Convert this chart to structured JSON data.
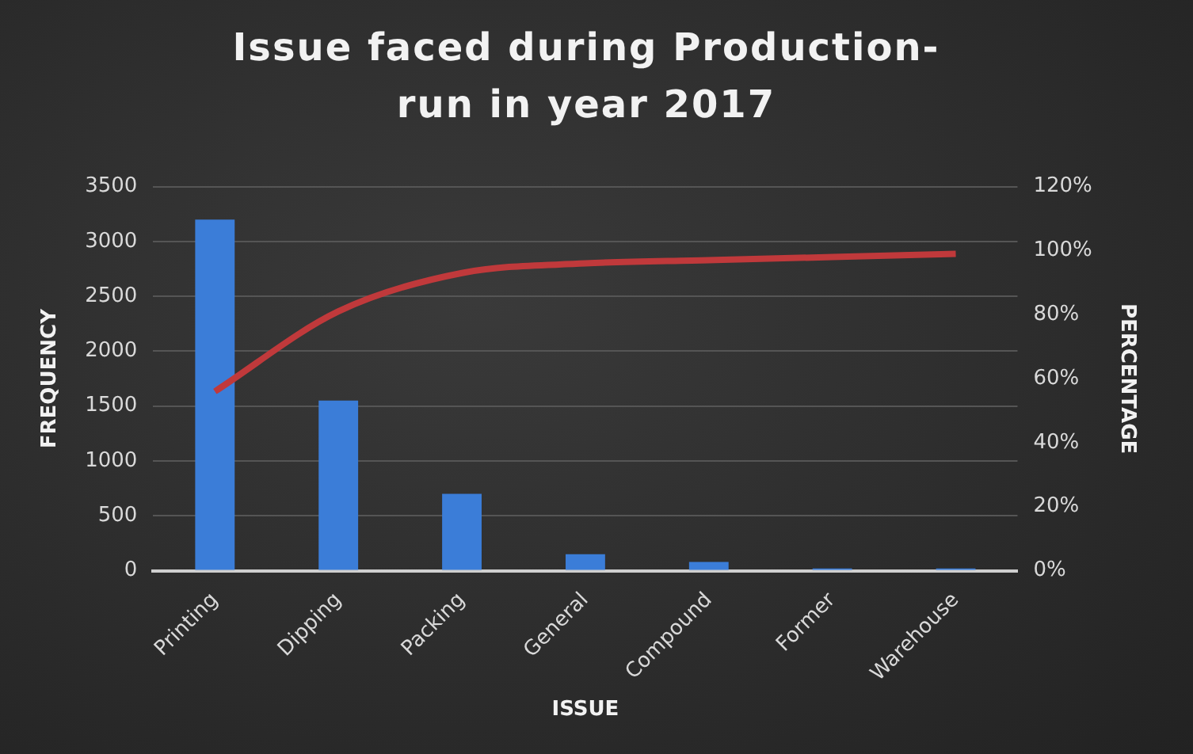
{
  "chart_data": {
    "type": "bar",
    "title": "Issue faced during Production-run in year 2017",
    "xlabel": "ISSUE",
    "ylabel": "FREQUENCY",
    "y2label": "PERCENTAGE",
    "categories": [
      "Printing",
      "Dipping",
      "Packing",
      "General",
      "Compound",
      "Former",
      "Warehouse"
    ],
    "series": [
      {
        "color": "#3b7dd8",
        "values": [
          3200,
          1550,
          700,
          150,
          80,
          20,
          20
        ]
      },
      {
        "type": "line",
        "axis": "y2",
        "color": "#c0393b",
        "marker": "none",
        "values": [
          56,
          81,
          93,
          96,
          97,
          98,
          99
        ]
      }
    ],
    "ylim": [
      0,
      3500
    ],
    "yticks": [
      0,
      500,
      1000,
      1500,
      2000,
      2500,
      3000,
      3500
    ],
    "y2lim": [
      0,
      120
    ],
    "y2ticks": [
      {
        "value": 0,
        "label": "0%"
      },
      {
        "value": 20,
        "label": "20%"
      },
      {
        "value": 40,
        "label": "40%"
      },
      {
        "value": 60,
        "label": "60%"
      },
      {
        "value": 80,
        "label": "80%"
      },
      {
        "value": 100,
        "label": "100%"
      },
      {
        "value": 120,
        "label": "120%"
      }
    ],
    "grid": "y",
    "legend": false
  }
}
